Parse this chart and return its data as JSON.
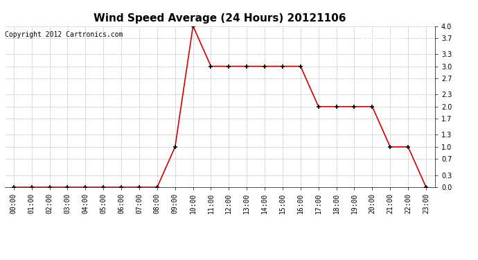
{
  "title": "Wind Speed Average (24 Hours) 20121106",
  "copyright": "Copyright 2012 Cartronics.com",
  "legend_bg": "#cc0000",
  "legend_text_color": "#ffffff",
  "x_labels": [
    "00:00",
    "01:00",
    "02:00",
    "03:00",
    "04:00",
    "05:00",
    "06:00",
    "07:00",
    "08:00",
    "09:00",
    "10:00",
    "11:00",
    "12:00",
    "13:00",
    "14:00",
    "15:00",
    "16:00",
    "17:00",
    "18:00",
    "19:00",
    "20:00",
    "21:00",
    "22:00",
    "23:00"
  ],
  "y_values": [
    0.0,
    0.0,
    0.0,
    0.0,
    0.0,
    0.0,
    0.0,
    0.0,
    0.0,
    1.0,
    4.0,
    3.0,
    3.0,
    3.0,
    3.0,
    3.0,
    3.0,
    2.0,
    2.0,
    2.0,
    2.0,
    1.0,
    1.0,
    0.0
  ],
  "line_color": "#cc0000",
  "marker_color": "#000000",
  "ylim": [
    0.0,
    4.0
  ],
  "yticks": [
    0.0,
    0.3,
    0.7,
    1.0,
    1.3,
    1.7,
    2.0,
    2.3,
    2.7,
    3.0,
    3.3,
    3.7,
    4.0
  ],
  "bg_color": "#ffffff",
  "grid_color": "#bbbbbb",
  "title_fontsize": 11,
  "copyright_fontsize": 7,
  "tick_fontsize": 7,
  "legend_fontsize": 7,
  "axis_label_color": "#000000"
}
